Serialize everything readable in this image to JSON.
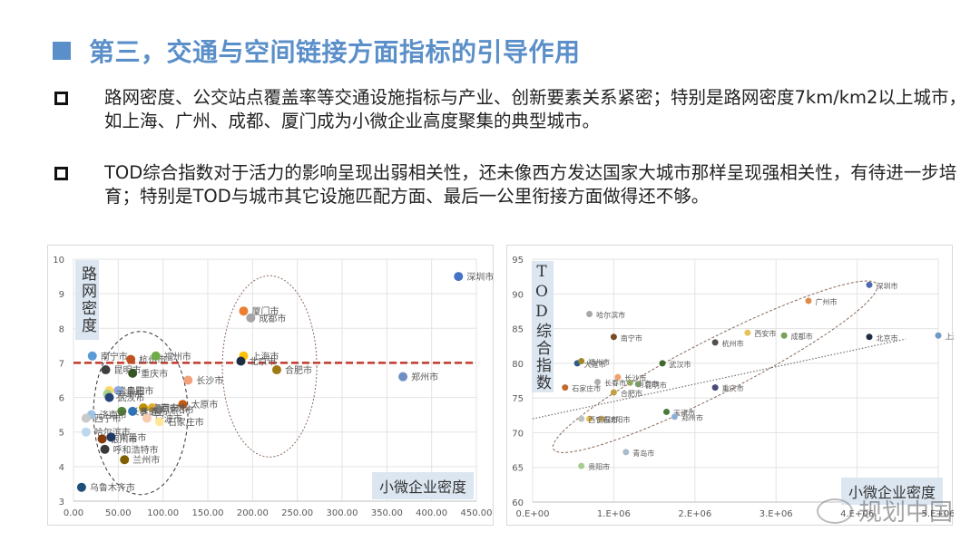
{
  "header": {
    "title": "第三，交通与空间链接方面指标的引导作用"
  },
  "bullets": [
    {
      "text": "路网密度、公交站点覆盖率等交通设施指标与产业、创新要素关系紧密；特别是路网密度7km/km2以上城市，如上海、广州、成都、厦门成为小微企业高度聚集的典型城市。"
    },
    {
      "text": "TOD综合指数对于活力的影响呈现出弱相关性，还未像西方发达国家大城市那样呈现强相关性，有待进一步培育；特别是TOD与城市其它设施匹配方面、最后一公里衔接方面做得还不够。"
    }
  ],
  "watermark": {
    "text": "规划中国"
  },
  "chart_data": [
    {
      "type": "scatter",
      "title": "",
      "xlabel": "小微企业密度",
      "ylabel": "路网密度",
      "xlim": [
        0,
        450
      ],
      "ylim": [
        3,
        10
      ],
      "x_ticks": [
        "0.00",
        "50.00",
        "100.00",
        "150.00",
        "200.00",
        "250.00",
        "300.00",
        "350.00",
        "400.00",
        "450.00"
      ],
      "y_ticks": [
        "3",
        "4",
        "5",
        "6",
        "7",
        "8",
        "9",
        "10"
      ],
      "grid": true,
      "reference_line": {
        "y": 7,
        "style": "dashed",
        "color": "#c0392b"
      },
      "annotations": [
        {
          "shape": "ellipse",
          "style": "dotted",
          "note": "high density cluster: 厦门 成都 上海 合肥"
        },
        {
          "shape": "ellipse",
          "style": "dashed",
          "note": "low density cluster"
        }
      ],
      "points": [
        {
          "city": "深圳市",
          "x": 430,
          "y": 9.5,
          "color": "#4472c4"
        },
        {
          "city": "厦门市",
          "x": 190,
          "y": 8.5,
          "color": "#ed7d31"
        },
        {
          "city": "成都市",
          "x": 198,
          "y": 8.3,
          "color": "#a5a5a5"
        },
        {
          "city": "上海市",
          "x": 190,
          "y": 7.2,
          "color": "#ffc000"
        },
        {
          "city": "北京市",
          "x": 187,
          "y": 7.05,
          "color": "#1f2d44"
        },
        {
          "city": "合肥市",
          "x": 227,
          "y": 6.8,
          "color": "#9e7a14"
        },
        {
          "city": "郑州市",
          "x": 368,
          "y": 6.6,
          "color": "#6f8fc4"
        },
        {
          "city": "南宁市",
          "x": 21,
          "y": 7.2,
          "color": "#5b9bd5"
        },
        {
          "city": "杭州市",
          "x": 64,
          "y": 7.1,
          "color": "#c0501e"
        },
        {
          "city": "福州市",
          "x": 92,
          "y": 7.2,
          "color": "#70ad47"
        },
        {
          "city": "昆明市",
          "x": 36,
          "y": 6.8,
          "color": "#404040"
        },
        {
          "city": "重庆市",
          "x": 66,
          "y": 6.7,
          "color": "#375623"
        },
        {
          "city": "长沙市",
          "x": 128,
          "y": 6.5,
          "color": "#f4a07a"
        },
        {
          "city": "青岛市",
          "x": 40,
          "y": 6.2,
          "color": "#ffd966"
        },
        {
          "city": "贵阳市",
          "x": 50,
          "y": 6.2,
          "color": "#8faadc"
        },
        {
          "city": "天津市",
          "x": 38,
          "y": 6.1,
          "color": "#a9d18e"
        },
        {
          "city": "武汉市",
          "x": 40,
          "y": 6.0,
          "color": "#264478"
        },
        {
          "city": "太原市",
          "x": 122,
          "y": 5.8,
          "color": "#c55a11"
        },
        {
          "city": "南京市",
          "x": 78,
          "y": 5.7,
          "color": "#bf9000"
        },
        {
          "city": "西安市",
          "x": 88,
          "y": 5.7,
          "color": "#e2ac30"
        },
        {
          "city": "沈阳市",
          "x": 95,
          "y": 5.65,
          "color": "#7f7f7f"
        },
        {
          "city": "长春市",
          "x": 54,
          "y": 5.6,
          "color": "#548235"
        },
        {
          "city": "大连市",
          "x": 66,
          "y": 5.6,
          "color": "#2e75b6"
        },
        {
          "city": "宁波市",
          "x": 82,
          "y": 5.4,
          "color": "#f8cbad"
        },
        {
          "city": "石家庄市",
          "x": 96,
          "y": 5.3,
          "color": "#ffe699"
        },
        {
          "city": "济南市",
          "x": 20,
          "y": 5.5,
          "color": "#9dc3e6"
        },
        {
          "city": "西宁市",
          "x": 14,
          "y": 5.4,
          "color": "#c9c9c9"
        },
        {
          "city": "哈尔滨市",
          "x": 14,
          "y": 5.0,
          "color": "#bdd7ee"
        },
        {
          "city": "银川市",
          "x": 32,
          "y": 4.8,
          "color": "#843c0c"
        },
        {
          "city": "南昌市",
          "x": 42,
          "y": 4.85,
          "color": "#203864"
        },
        {
          "city": "呼和浩特市",
          "x": 35,
          "y": 4.5,
          "color": "#3b3838"
        },
        {
          "city": "兰州市",
          "x": 57,
          "y": 4.2,
          "color": "#806000"
        },
        {
          "city": "乌鲁木齐市",
          "x": 9,
          "y": 3.4,
          "color": "#1f4e79"
        }
      ]
    },
    {
      "type": "scatter",
      "title": "",
      "xlabel": "小微企业密度",
      "ylabel": "TOD综合指数",
      "xlim": [
        0,
        5000000
      ],
      "ylim": [
        60,
        95
      ],
      "x_ticks": [
        "0.E+00",
        "1.E+06",
        "2.E+06",
        "3.E+06",
        "4.E+06",
        "5.E+06"
      ],
      "y_ticks": [
        "60",
        "65",
        "70",
        "75",
        "80",
        "85",
        "90",
        "95"
      ],
      "grid": true,
      "trendline": {
        "style": "dotted",
        "from": [
          0,
          72
        ],
        "to": [
          4600000,
          83.5
        ]
      },
      "annotations": [
        {
          "shape": "ellipse",
          "style": "dashed",
          "note": "tilted ellipse around trend cluster"
        }
      ],
      "points": [
        {
          "city": "深圳市",
          "x": 4150000,
          "y": 91.3,
          "color": "#4e6ab0"
        },
        {
          "city": "广州市",
          "x": 3400000,
          "y": 89.0,
          "color": "#e08a4a"
        },
        {
          "city": "上海市",
          "x": 5000000,
          "y": 84.0,
          "color": "#6f9ac8"
        },
        {
          "city": "北京市",
          "x": 4150000,
          "y": 83.8,
          "color": "#1f2d44"
        },
        {
          "city": "成都市",
          "x": 3100000,
          "y": 84.0,
          "color": "#7aa05a"
        },
        {
          "city": "西安市",
          "x": 2650000,
          "y": 84.4,
          "color": "#e8c25a"
        },
        {
          "city": "杭州市",
          "x": 2250000,
          "y": 83.0,
          "color": "#505050"
        },
        {
          "city": "哈尔滨市",
          "x": 700000,
          "y": 87.1,
          "color": "#a8a8a8"
        },
        {
          "city": "南宁市",
          "x": 1000000,
          "y": 83.8,
          "color": "#7a4a22"
        },
        {
          "city": "武汉市",
          "x": 1600000,
          "y": 80.0,
          "color": "#3e6a2a"
        },
        {
          "city": "大连市",
          "x": 550000,
          "y": 80.0,
          "color": "#2e5c8a"
        },
        {
          "city": "福州市",
          "x": 600000,
          "y": 80.3,
          "color": "#a0882a"
        },
        {
          "city": "重庆市",
          "x": 2250000,
          "y": 76.5,
          "color": "#4a4a7a"
        },
        {
          "city": "长沙市",
          "x": 1050000,
          "y": 78.0,
          "color": "#f0a070"
        },
        {
          "city": "长春市",
          "x": 800000,
          "y": 77.3,
          "color": "#b0b0b0"
        },
        {
          "city": "南京市",
          "x": 1200000,
          "y": 77.2,
          "color": "#90a860"
        },
        {
          "city": "昆明市",
          "x": 1300000,
          "y": 77.0,
          "color": "#7a9a6a"
        },
        {
          "city": "石家庄市",
          "x": 400000,
          "y": 76.5,
          "color": "#c06a30"
        },
        {
          "city": "合肥市",
          "x": 1000000,
          "y": 75.8,
          "color": "#c0a040"
        },
        {
          "city": "天津市",
          "x": 1650000,
          "y": 73.0,
          "color": "#4a7a3a"
        },
        {
          "city": "郑州市",
          "x": 1750000,
          "y": 72.3,
          "color": "#8ab0d8"
        },
        {
          "city": "南昌市",
          "x": 700000,
          "y": 72.0,
          "color": "#e8c050"
        },
        {
          "city": "沈阳市",
          "x": 850000,
          "y": 72.0,
          "color": "#c8a860"
        },
        {
          "city": "西宁市",
          "x": 600000,
          "y": 72.0,
          "color": "#c0c0c0"
        },
        {
          "city": "青岛市",
          "x": 1150000,
          "y": 67.2,
          "color": "#a8bccc"
        },
        {
          "city": "贵阳市",
          "x": 600000,
          "y": 65.2,
          "color": "#a8cc90"
        }
      ]
    }
  ]
}
